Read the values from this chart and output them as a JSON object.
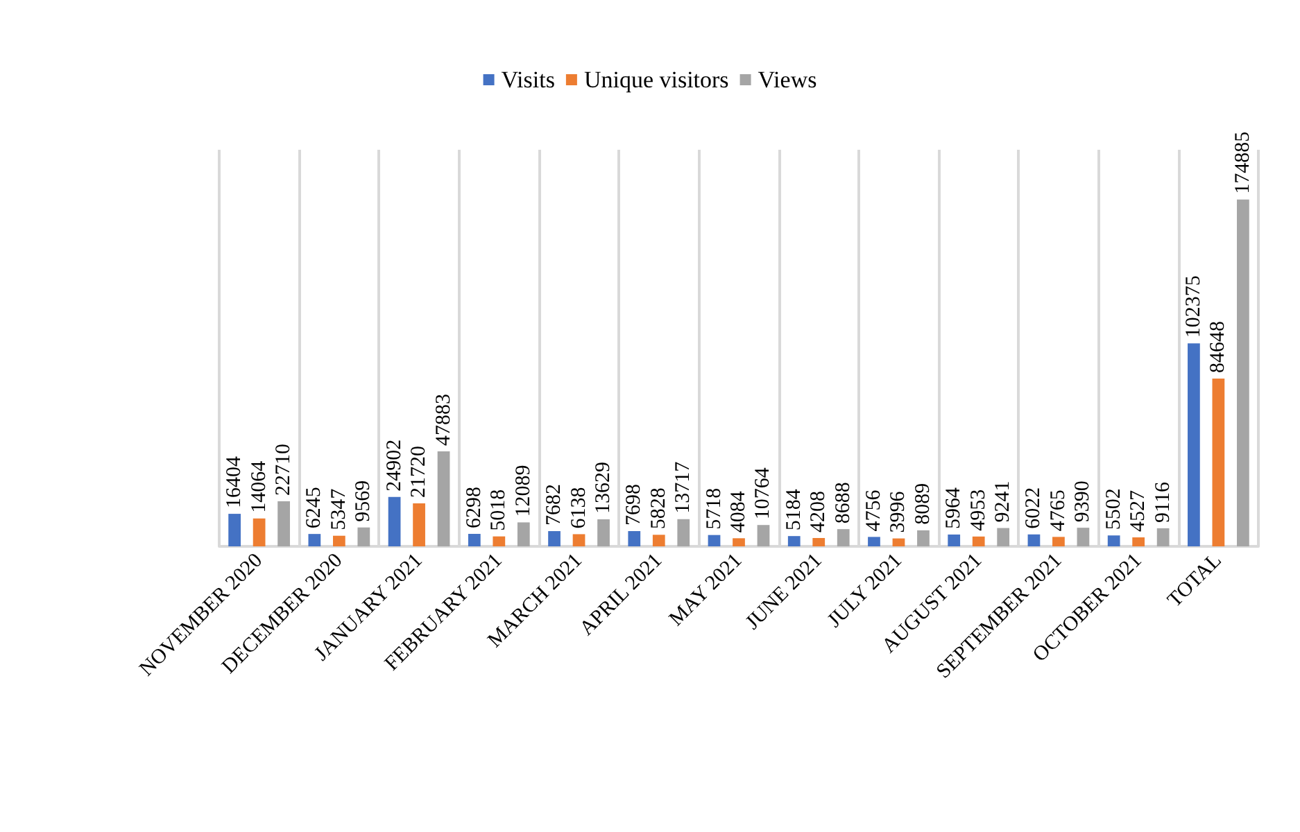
{
  "chart_data": {
    "type": "bar",
    "categories": [
      "NOVEMBER 2020",
      "DECEMBER 2020",
      "JANUARY 2021",
      "FEBRUARY 2021",
      "MARCH 2021",
      "APRIL 2021",
      "MAY 2021",
      "JUNE 2021",
      "JULY 2021",
      "AUGUST 2021",
      "SEPTEMBER 2021",
      "OCTOBER 2021",
      "TOTAL"
    ],
    "series": [
      {
        "name": "Visits",
        "color": "#4472c4",
        "values": [
          16404,
          6245,
          24902,
          6298,
          7682,
          7698,
          5718,
          5184,
          4756,
          5964,
          6022,
          5502,
          102375
        ]
      },
      {
        "name": "Unique visitors",
        "color": "#ed7d31",
        "values": [
          14064,
          5347,
          21720,
          5018,
          6138,
          5828,
          4084,
          4208,
          3996,
          4953,
          4765,
          4527,
          84648
        ]
      },
      {
        "name": "Views",
        "color": "#a5a5a5",
        "values": [
          22710,
          9569,
          47883,
          12089,
          13629,
          13717,
          10764,
          8688,
          8089,
          9241,
          9390,
          9116,
          174885
        ]
      }
    ],
    "ylim": [
      0,
      200000
    ],
    "data_labels": true,
    "grid": "x",
    "legend": "top",
    "tick_labels": "x"
  }
}
